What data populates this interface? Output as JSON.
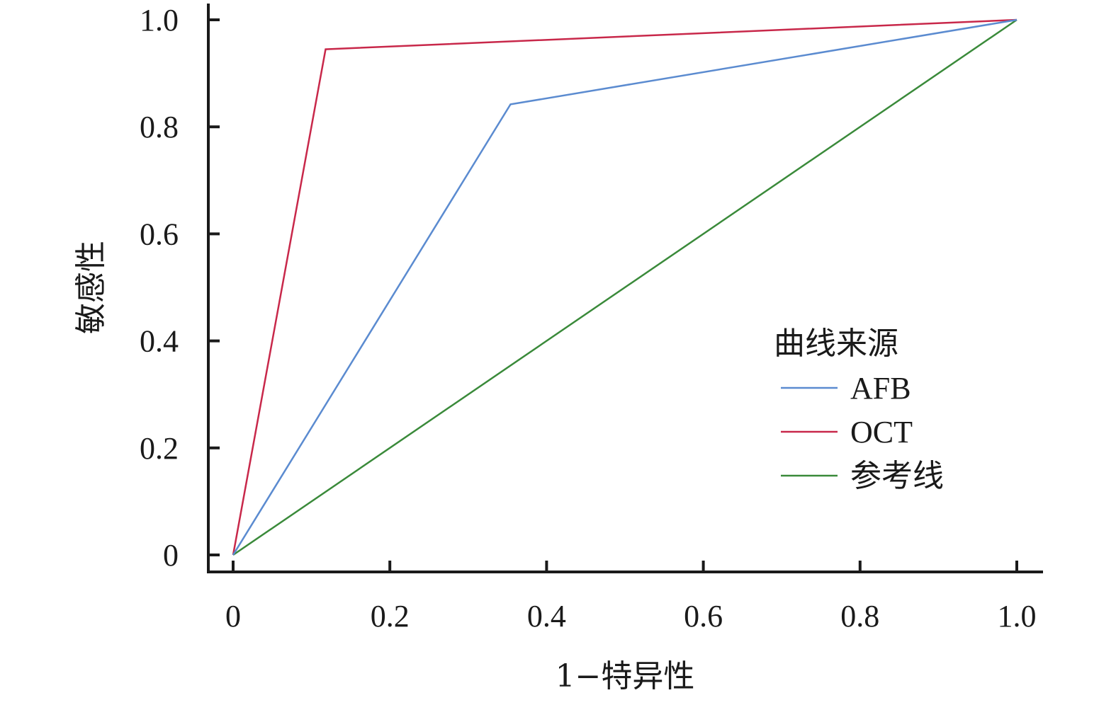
{
  "chart_data": {
    "type": "line",
    "title": "",
    "xlabel": "1−特异性",
    "ylabel": "敏感性",
    "xlim": [
      0,
      1
    ],
    "ylim": [
      0,
      1
    ],
    "x_ticks": [
      0,
      0.2,
      0.4,
      0.6,
      0.8,
      1.0
    ],
    "y_ticks": [
      0,
      0.2,
      0.4,
      0.6,
      0.8,
      1.0
    ],
    "x_tick_labels": [
      "0",
      "0.2",
      "0.4",
      "0.6",
      "0.8",
      "1.0"
    ],
    "y_tick_labels": [
      "0",
      "0.2",
      "0.4",
      "0.6",
      "0.8",
      "1.0"
    ],
    "grid": false,
    "legend": {
      "title": "曲线来源",
      "placement": "lower-right"
    },
    "series": [
      {
        "name": "AFB",
        "color": "#5b8bd0",
        "points": [
          [
            0,
            0
          ],
          [
            0.354,
            0.842
          ],
          [
            1,
            1
          ]
        ]
      },
      {
        "name": "OCT",
        "color": "#c8284a",
        "points": [
          [
            0,
            0
          ],
          [
            0.118,
            0.945
          ],
          [
            1,
            1
          ]
        ]
      },
      {
        "name": "参考线",
        "color": "#3a8a3a",
        "points": [
          [
            0,
            0
          ],
          [
            1,
            1
          ]
        ]
      }
    ]
  }
}
